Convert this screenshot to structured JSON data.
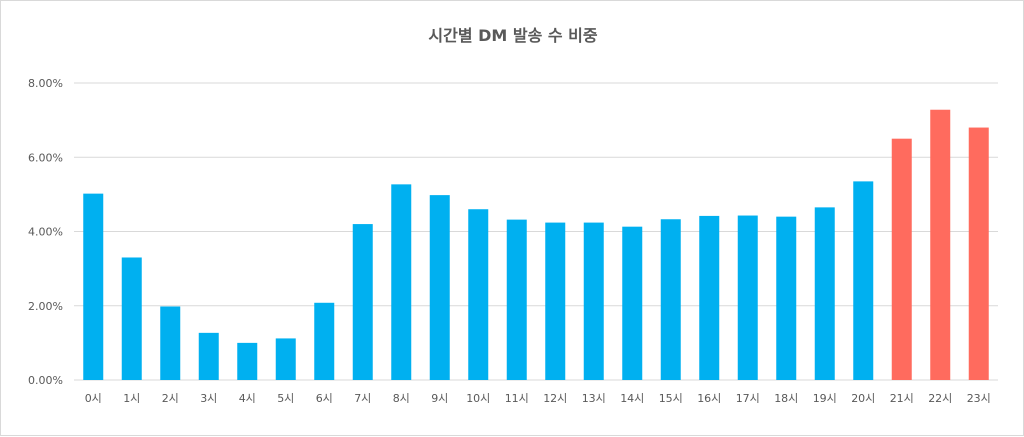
{
  "chart_data": {
    "type": "bar",
    "title": "시간별 DM 발송 수 비중",
    "categories": [
      "0시",
      "1시",
      "2시",
      "3시",
      "4시",
      "5시",
      "6시",
      "7시",
      "8시",
      "9시",
      "10시",
      "11시",
      "12시",
      "13시",
      "14시",
      "15시",
      "16시",
      "17시",
      "18시",
      "19시",
      "20시",
      "21시",
      "22시",
      "23시"
    ],
    "values": [
      5.02,
      3.3,
      1.98,
      1.27,
      1.0,
      1.12,
      2.08,
      4.2,
      5.27,
      4.98,
      4.6,
      4.32,
      4.24,
      4.24,
      4.13,
      4.33,
      4.42,
      4.43,
      4.4,
      4.65,
      5.35,
      6.5,
      7.28,
      6.8
    ],
    "highlighted": [
      "21시",
      "22시",
      "23시"
    ],
    "ylim": [
      0,
      8
    ],
    "yticks": [
      "0.00%",
      "2.00%",
      "4.00%",
      "6.00%",
      "8.00%"
    ],
    "grid": true,
    "legend": "none",
    "colors": {
      "default": "#00b0f0",
      "highlight": "#ff6b5e"
    }
  }
}
